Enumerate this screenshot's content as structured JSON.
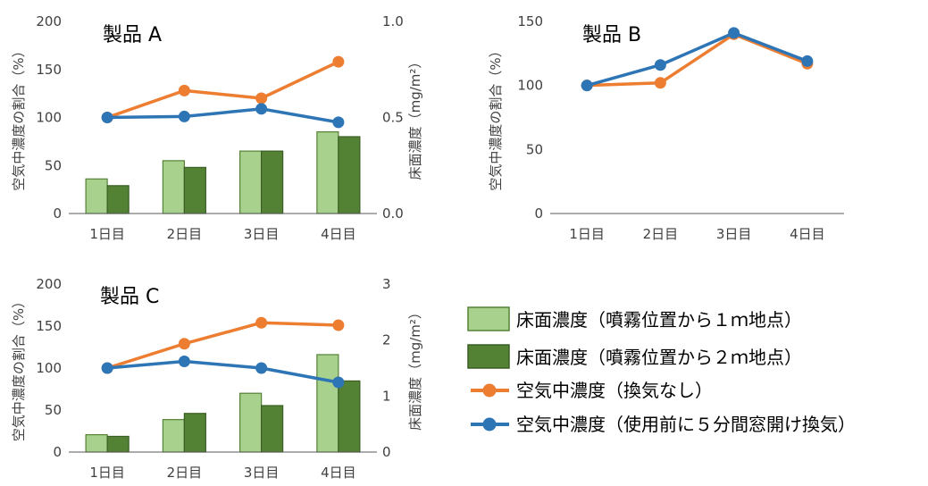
{
  "colors": {
    "bar1_fill": "#a9d18e",
    "bar1_stroke": "#548235",
    "bar2_fill": "#548235",
    "bar2_stroke": "#3b5e25",
    "line_none": "#ed7d31",
    "line_vent": "#2e75b6",
    "axis": "#595959",
    "text": "#000000",
    "tick_text": "#404040"
  },
  "legend": {
    "bar1": "床面濃度（噴霧位置から１ｍ地点）",
    "bar2": "床面濃度（噴霧位置から２ｍ地点）",
    "line1": "空気中濃度（換気なし）",
    "line2": "空気中濃度（使用前に５分間窓開け換気）"
  },
  "chart_data": [
    {
      "type": "bar+line",
      "title": "製品 A",
      "categories": [
        "1日目",
        "2日目",
        "3日目",
        "4日目"
      ],
      "ylabel": "空気中濃度の割合（%）",
      "y2label": "床面濃度（mg/m²）",
      "ylim": [
        0,
        200
      ],
      "yticks": [
        "0",
        "50",
        "100",
        "150",
        "200"
      ],
      "y2lim": [
        0,
        1.0
      ],
      "y2ticks": [
        "0.0",
        "0.5",
        "1.0"
      ],
      "bars": [
        {
          "name": "床面濃度（噴霧位置から１ｍ地点）",
          "values": [
            0.18,
            0.275,
            0.325,
            0.425
          ]
        },
        {
          "name": "床面濃度（噴霧位置から２ｍ地点）",
          "values": [
            0.145,
            0.24,
            0.325,
            0.4
          ]
        }
      ],
      "lines": [
        {
          "name": "空気中濃度（換気なし）",
          "values": [
            100,
            128,
            120,
            158
          ]
        },
        {
          "name": "空気中濃度（使用前に５分間窓開け換気）",
          "values": [
            100,
            101,
            109,
            95
          ]
        }
      ],
      "grid": false
    },
    {
      "type": "line",
      "title": "製品 B",
      "categories": [
        "1日目",
        "2日目",
        "3日目",
        "4日目"
      ],
      "ylabel": "空気中濃度の割合（%）",
      "ylim": [
        0,
        150
      ],
      "yticks": [
        "0",
        "50",
        "100",
        "150"
      ],
      "lines": [
        {
          "name": "空気中濃度（換気なし）",
          "values": [
            100,
            102,
            140,
            117
          ]
        },
        {
          "name": "空気中濃度（使用前に５分間窓開け換気）",
          "values": [
            100,
            116,
            141,
            119
          ]
        }
      ],
      "grid": false
    },
    {
      "type": "bar+line",
      "title": "製品 C",
      "categories": [
        "1日目",
        "2日目",
        "3日目",
        "4日目"
      ],
      "ylabel": "空気中濃度の割合（%）",
      "y2label": "床面濃度（mg/m²）",
      "ylim": [
        0,
        200
      ],
      "yticks": [
        "0",
        "50",
        "100",
        "150",
        "200"
      ],
      "y2lim": [
        0,
        3
      ],
      "y2ticks": [
        "0",
        "1",
        "2",
        "3"
      ],
      "bars": [
        {
          "name": "床面濃度（噴霧位置から１ｍ地点）",
          "values": [
            0.31,
            0.58,
            1.05,
            1.74
          ]
        },
        {
          "name": "床面濃度（噴霧位置から２ｍ地点）",
          "values": [
            0.28,
            0.69,
            0.83,
            1.27
          ]
        }
      ],
      "lines": [
        {
          "name": "空気中濃度（換気なし）",
          "values": [
            100,
            129,
            154,
            151
          ]
        },
        {
          "name": "空気中濃度（使用前に５分間窓開け換気）",
          "values": [
            100,
            108,
            100,
            83
          ]
        }
      ],
      "grid": false
    }
  ]
}
